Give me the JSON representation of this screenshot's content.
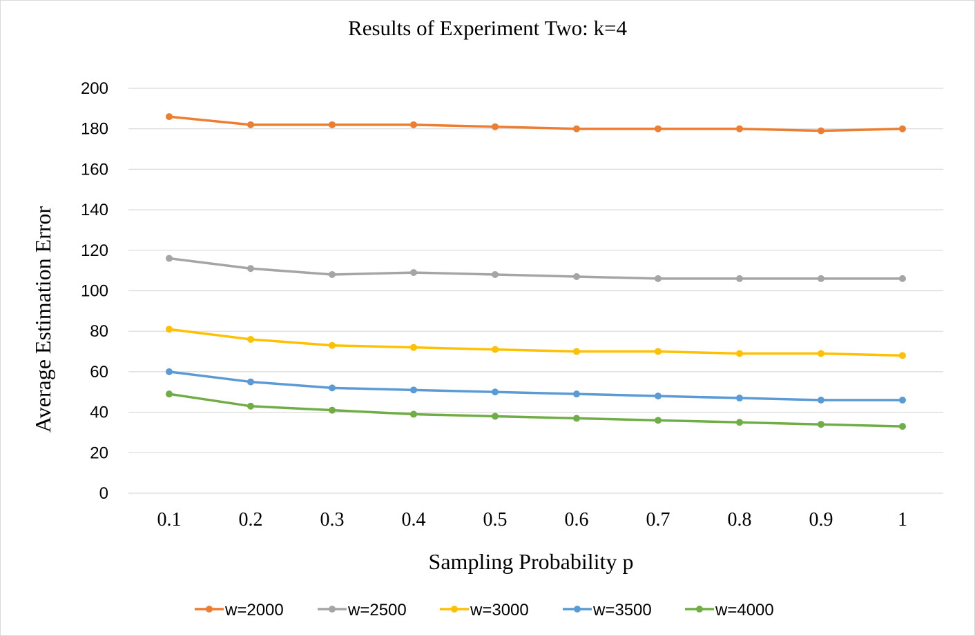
{
  "chart_data": {
    "type": "line",
    "title": "Results of Experiment Two: k=4",
    "xlabel": "Sampling Probability p",
    "ylabel": "Average Estimation Error",
    "categories": [
      "0.1",
      "0.2",
      "0.3",
      "0.4",
      "0.5",
      "0.6",
      "0.7",
      "0.8",
      "0.9",
      "1"
    ],
    "ylim": [
      0,
      200
    ],
    "yticks": [
      0,
      20,
      40,
      60,
      80,
      100,
      120,
      140,
      160,
      180,
      200
    ],
    "grid": true,
    "legend_position": "bottom",
    "series": [
      {
        "name": "w=2000",
        "color": "#ED7D31",
        "values": [
          186,
          182,
          182,
          182,
          181,
          180,
          180,
          180,
          179,
          180
        ]
      },
      {
        "name": "w=2500",
        "color": "#A5A5A5",
        "values": [
          116,
          111,
          108,
          109,
          108,
          107,
          106,
          106,
          106,
          106
        ]
      },
      {
        "name": "w=3000",
        "color": "#FFC000",
        "values": [
          81,
          76,
          73,
          72,
          71,
          70,
          70,
          69,
          69,
          68
        ]
      },
      {
        "name": "w=3500",
        "color": "#5B9BD5",
        "values": [
          60,
          55,
          52,
          51,
          50,
          49,
          48,
          47,
          46,
          46
        ]
      },
      {
        "name": "w=4000",
        "color": "#70AD47",
        "values": [
          49,
          43,
          41,
          39,
          38,
          37,
          36,
          35,
          34,
          33
        ]
      }
    ]
  }
}
